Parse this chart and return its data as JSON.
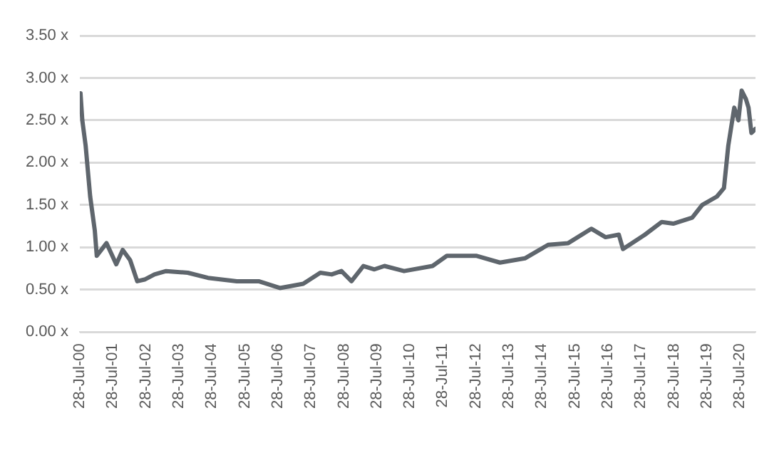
{
  "chart_data": {
    "type": "line",
    "x": [
      "2000-07-28",
      "2000-08-05",
      "2000-08-25",
      "2000-10-01",
      "2000-11-20",
      "2001-01-10",
      "2001-02-01",
      "2001-05-20",
      "2001-09-05",
      "2001-11-15",
      "2002-02-05",
      "2002-04-25",
      "2002-07-15",
      "2002-11-01",
      "2003-03-10",
      "2003-11-05",
      "2004-06-15",
      "2005-05-01",
      "2005-12-28",
      "2006-08-20",
      "2007-05-05",
      "2007-11-10",
      "2008-03-15",
      "2008-07-01",
      "2008-10-20",
      "2009-03-01",
      "2009-07-01",
      "2009-10-20",
      "2010-05-25",
      "2011-04-05",
      "2011-09-10",
      "2012-07-30",
      "2013-04-20",
      "2014-01-20",
      "2014-10-05",
      "2015-05-15",
      "2016-01-25",
      "2016-07-01",
      "2016-11-25",
      "2017-01-10",
      "2017-09-10",
      "2018-03-15",
      "2018-07-20",
      "2019-02-15",
      "2019-06-05",
      "2019-11-15",
      "2020-02-01",
      "2020-03-20",
      "2020-05-25",
      "2020-07-10",
      "2020-08-15",
      "2020-10-01",
      "2020-10-30",
      "2020-12-01",
      "2021-01-15"
    ],
    "series": [
      {
        "color": "#5f666d",
        "values": [
          2.6,
          2.82,
          2.5,
          2.2,
          1.6,
          1.2,
          0.9,
          1.05,
          0.8,
          0.97,
          0.85,
          0.6,
          0.62,
          0.68,
          0.72,
          0.7,
          0.64,
          0.6,
          0.6,
          0.52,
          0.57,
          0.7,
          0.68,
          0.72,
          0.6,
          0.78,
          0.74,
          0.78,
          0.72,
          0.78,
          0.9,
          0.9,
          0.82,
          0.87,
          1.03,
          1.05,
          1.22,
          1.12,
          1.15,
          0.98,
          1.15,
          1.3,
          1.28,
          1.35,
          1.5,
          1.6,
          1.7,
          2.2,
          2.65,
          2.5,
          2.85,
          2.75,
          2.65,
          2.35,
          2.4
        ]
      }
    ],
    "xlim": [
      "2000-07-28",
      "2021-01-15"
    ],
    "xticks": [
      {
        "value": "2000-07-28",
        "label": "28-Jul-00"
      },
      {
        "value": "2001-07-28",
        "label": "28-Jul-01"
      },
      {
        "value": "2002-07-28",
        "label": "28-Jul-02"
      },
      {
        "value": "2003-07-28",
        "label": "28-Jul-03"
      },
      {
        "value": "2004-07-28",
        "label": "28-Jul-04"
      },
      {
        "value": "2005-07-28",
        "label": "28-Jul-05"
      },
      {
        "value": "2006-07-28",
        "label": "28-Jul-06"
      },
      {
        "value": "2007-07-28",
        "label": "28-Jul-07"
      },
      {
        "value": "2008-07-28",
        "label": "28-Jul-08"
      },
      {
        "value": "2009-07-28",
        "label": "28-Jul-09"
      },
      {
        "value": "2010-07-28",
        "label": "28-Jul-10"
      },
      {
        "value": "2011-07-28",
        "label": "28-Jul-11"
      },
      {
        "value": "2012-07-28",
        "label": "28-Jul-12"
      },
      {
        "value": "2013-07-28",
        "label": "28-Jul-13"
      },
      {
        "value": "2014-07-28",
        "label": "28-Jul-14"
      },
      {
        "value": "2015-07-28",
        "label": "28-Jul-15"
      },
      {
        "value": "2016-07-28",
        "label": "28-Jul-16"
      },
      {
        "value": "2017-07-28",
        "label": "28-Jul-17"
      },
      {
        "value": "2018-07-28",
        "label": "28-Jul-18"
      },
      {
        "value": "2019-07-28",
        "label": "28-Jul-19"
      },
      {
        "value": "2020-07-28",
        "label": "28-Jul-20"
      }
    ],
    "ylim": [
      0,
      3.5
    ],
    "yticks": [
      {
        "value": 0,
        "label": "0.00 x"
      },
      {
        "value": 0.5,
        "label": "0.50 x"
      },
      {
        "value": 1,
        "label": "1.00 x"
      },
      {
        "value": 1.5,
        "label": "1.50 x"
      },
      {
        "value": 2,
        "label": "2.00 x"
      },
      {
        "value": 2.5,
        "label": "2.50 x"
      },
      {
        "value": 3,
        "label": "3.00 x"
      },
      {
        "value": 3.5,
        "label": "3.50 x"
      }
    ],
    "grid": "y",
    "marker": "none",
    "line_style": "solid"
  }
}
